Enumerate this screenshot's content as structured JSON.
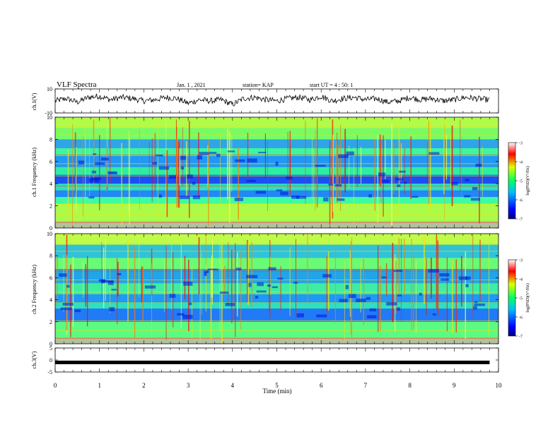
{
  "header": {
    "title": "VLF Spectra",
    "date": "Jan. 1 , 2021",
    "station": "station= KAP",
    "start": "start UT = 4 : 50: 1"
  },
  "colors": {
    "spectrum_scale": [
      "#000000",
      "#0000ff",
      "#00ffff",
      "#00ff00",
      "#ffff00",
      "#ff0000",
      "#ffffff"
    ],
    "trace": "#000000",
    "background": "#ffffff"
  },
  "chart_data": [
    {
      "type": "line",
      "name": "ch1-waveform",
      "ylabel": "ch.1(V)",
      "ylim": [
        -10,
        10
      ],
      "yticks": [
        "10",
        "-10"
      ],
      "xlim": [
        0,
        10
      ],
      "x": [
        0,
        0.25,
        0.5,
        0.75,
        1.0,
        1.25,
        1.5,
        1.75,
        2.0,
        2.25,
        2.5,
        2.75,
        3.0,
        3.25,
        3.5,
        3.75,
        4.0,
        4.25,
        4.5,
        4.75,
        5.0,
        5.25,
        5.5,
        5.75,
        6.0,
        6.25,
        6.5,
        6.75,
        7.0,
        7.25,
        7.5,
        7.75,
        8.0,
        8.25,
        8.5,
        8.75,
        9.0,
        9.25,
        9.5,
        9.75
      ],
      "values": [
        0,
        2,
        -1,
        3,
        4,
        1,
        3,
        2,
        0,
        1,
        3,
        2,
        -2,
        1,
        0,
        1,
        -3,
        2,
        3,
        1,
        0,
        2,
        3,
        1,
        4,
        0,
        2,
        3,
        1,
        2,
        -1,
        0,
        3,
        1,
        2,
        0,
        1,
        3,
        2,
        1
      ]
    },
    {
      "type": "heatmap",
      "name": "ch1-spectrogram",
      "ylabel": "ch.1 Frequency (kHz)",
      "ylim": [
        0,
        10
      ],
      "yticks": [
        "0",
        "2",
        "4",
        "6",
        "8",
        "10"
      ],
      "xlim": [
        0,
        10
      ],
      "colorbar": {
        "label": "log(PSD)(V²/Hz)",
        "ticks": [
          "-3",
          "-4",
          "-5",
          "-6",
          "-7"
        ],
        "range": [
          -7,
          -3
        ]
      }
    },
    {
      "type": "heatmap",
      "name": "ch2-spectrogram",
      "ylabel": "ch.2 Frequency (kHz)",
      "ylim": [
        0,
        10
      ],
      "yticks": [
        "0",
        "2",
        "4",
        "6",
        "8",
        "10"
      ],
      "xlim": [
        0,
        10
      ],
      "colorbar": {
        "label": "log(PSD)(V²/Hz)",
        "ticks": [
          "-3",
          "-4",
          "-5",
          "-6",
          "-7"
        ],
        "range": [
          -7,
          -3
        ]
      }
    },
    {
      "type": "line",
      "name": "ch3-waveform",
      "ylabel": "ch.3(V)",
      "ylim": [
        -5,
        5
      ],
      "yticks": [
        "5",
        "0",
        "-5"
      ],
      "xlim": [
        0,
        10
      ],
      "values": [
        -1,
        -1
      ]
    }
  ],
  "xaxis": {
    "label": "Time (min)",
    "ticks": [
      "0",
      "1",
      "2",
      "3",
      "4",
      "5",
      "6",
      "7",
      "8",
      "9",
      "10"
    ]
  }
}
